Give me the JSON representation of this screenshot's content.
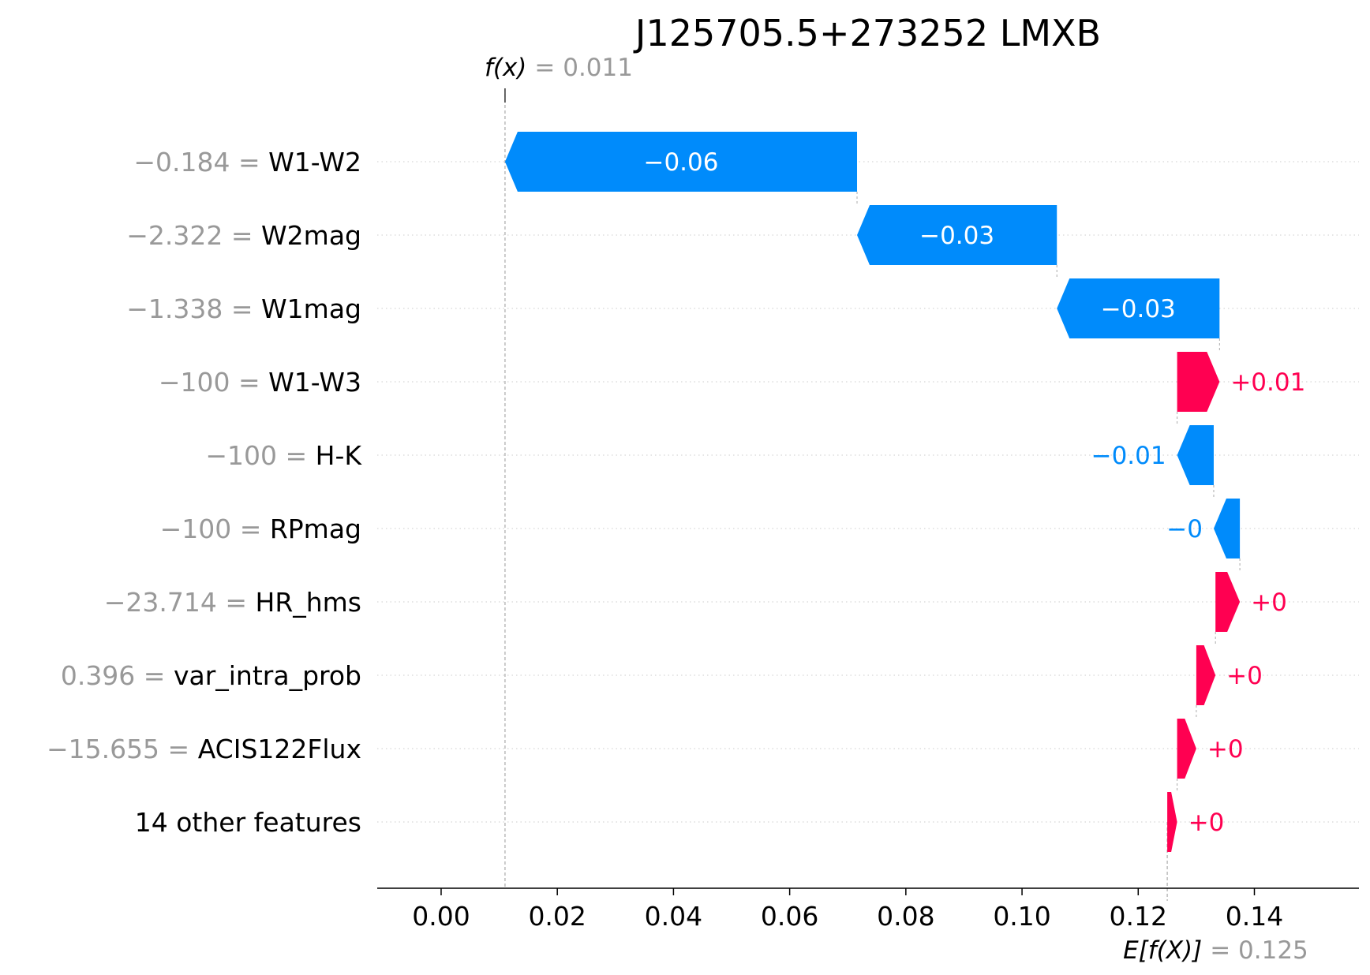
{
  "chart_data": {
    "type": "waterfall",
    "title": "J125705.5+273252 LMXB",
    "fx": {
      "label": "f(x)",
      "value": 0.011,
      "text": "= 0.011"
    },
    "efx": {
      "label": "E[f(X)]",
      "value": 0.125,
      "text": "= 0.125"
    },
    "xlim": [
      -0.011,
      0.158
    ],
    "xticks": [
      {
        "value": 0.0,
        "label": "0.00"
      },
      {
        "value": 0.02,
        "label": "0.02"
      },
      {
        "value": 0.04,
        "label": "0.04"
      },
      {
        "value": 0.06,
        "label": "0.06"
      },
      {
        "value": 0.08,
        "label": "0.08"
      },
      {
        "value": 0.1,
        "label": "0.10"
      },
      {
        "value": 0.12,
        "label": "0.12"
      },
      {
        "value": 0.14,
        "label": "0.14"
      }
    ],
    "grid": "horizontal dotted",
    "colors": {
      "positive": "#ff0051",
      "negative": "#008bfb",
      "annotation": "#999999"
    },
    "features": [
      {
        "name": "W1-W2",
        "value": "−0.184",
        "start": 0.0716,
        "end": 0.011,
        "label": "−0.06"
      },
      {
        "name": "W2mag",
        "value": "−2.322",
        "start": 0.106,
        "end": 0.0716,
        "label": "−0.03"
      },
      {
        "name": "W1mag",
        "value": "−1.338",
        "start": 0.134,
        "end": 0.106,
        "label": "−0.03"
      },
      {
        "name": "W1-W3",
        "value": "−100",
        "start": 0.1267,
        "end": 0.134,
        "label": "+0.01"
      },
      {
        "name": "H-K",
        "value": "−100",
        "start": 0.133,
        "end": 0.1267,
        "label": "−0.01"
      },
      {
        "name": "RPmag",
        "value": "−100",
        "start": 0.1375,
        "end": 0.133,
        "label": "−0"
      },
      {
        "name": "HR_hms",
        "value": "−23.714",
        "start": 0.1333,
        "end": 0.1375,
        "label": "+0"
      },
      {
        "name": "var_intra_prob",
        "value": "0.396",
        "start": 0.13,
        "end": 0.1333,
        "label": "+0"
      },
      {
        "name": "ACIS122Flux",
        "value": "−15.655",
        "start": 0.1267,
        "end": 0.13,
        "label": "+0"
      },
      {
        "name": "14 other features",
        "value": "",
        "start": 0.125,
        "end": 0.1267,
        "label": "+0"
      }
    ]
  }
}
